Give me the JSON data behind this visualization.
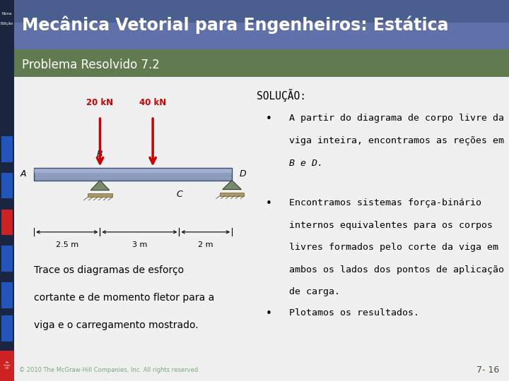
{
  "title": "Mecânica Vetorial para Engenheiros: Estática",
  "subtitle": "Problema Resolvido 7.2",
  "edition_line1": "Nona",
  "edition_line2": "Edição",
  "header_bg": "#5a6fa0",
  "subheader_bg": "#627a50",
  "body_bg": "#f0f0f0",
  "left_sidebar_bg": "#1a2540",
  "nav_blue": "#2255bb",
  "nav_red": "#cc2222",
  "title_color": "#ffffff",
  "subtitle_color": "#ffffff",
  "solution_title": "SOLUÇÃO:",
  "bullet1_line1": "A partir do diagrama de corpo livre da",
  "bullet1_line2": "viga inteira, encontramos as reções em",
  "bullet1_line3": "B e D.",
  "bullet2_line1": "Encontramos sistemas força-binário",
  "bullet2_line2": "internos equivalentes para os corpos",
  "bullet2_line3": "livres formados pelo corte da viga em",
  "bullet2_line4": "ambos os lados dos pontos de aplicação",
  "bullet2_line5": "de carga.",
  "bullet3": "Plotamos os resultados.",
  "left_text_line1": "Trace os diagramas de esforço",
  "left_text_line2": "cortante e de momento fletor para a",
  "left_text_line3": "viga e o carregamento mostrado.",
  "copyright": "© 2010 The McGraw-Hill Companies, Inc. All rights reserved.",
  "page_num": "7- 16",
  "force1_label": "20 kN",
  "force2_label": "40 kN",
  "dim1": "2.5 m",
  "dim2": "3 m",
  "dim3": "2 m",
  "point_A": "A",
  "point_B": "B",
  "point_C": "C",
  "point_D": "D",
  "force_color": "#cc0000",
  "beam_color": "#8899bb",
  "beam_edge": "#334466",
  "support_face": "#8a7a55",
  "support_tri": "#556677"
}
